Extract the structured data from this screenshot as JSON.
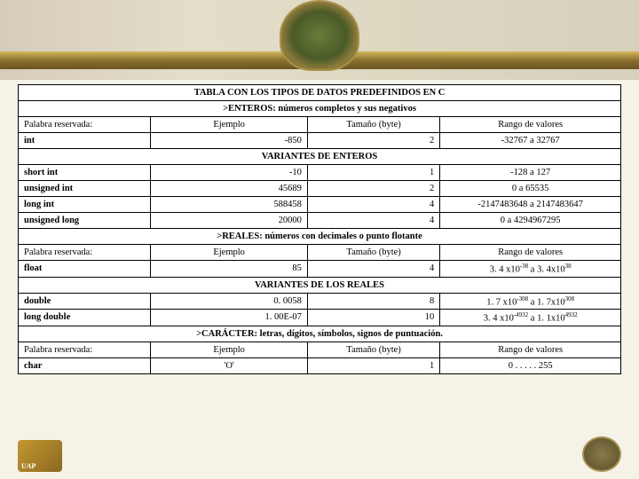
{
  "title": "TABLA CON LOS TIPOS DE DATOS PREDEFINIDOS EN C",
  "sections": {
    "enteros": {
      "header": ">ENTEROS: números completos y sus negativos",
      "cols": {
        "c1": "Palabra reservada:",
        "c2": "Ejemplo",
        "c3": "Tamaño (byte)",
        "c4": "Rango de valores"
      },
      "row_int": {
        "name": "int",
        "ej": "-850",
        "sz": "2",
        "rng": "-32767 a 32767"
      },
      "variants_header": "VARIANTES DE ENTEROS",
      "row_short": {
        "name": "short int",
        "ej": "-10",
        "sz": "1",
        "rng": "-128 a 127"
      },
      "row_uint": {
        "name": "unsigned int",
        "ej": "45689",
        "sz": "2",
        "rng": "0 a 65535"
      },
      "row_long": {
        "name": "long int",
        "ej": "588458",
        "sz": "4",
        "rng": "-2147483648 a 2147483647"
      },
      "row_ulong": {
        "name": "unsigned long",
        "ej": "20000",
        "sz": "4",
        "rng": "0 a 4294967295"
      }
    },
    "reales": {
      "header": ">REALES: números con decimales o punto flotante",
      "cols": {
        "c1": "Palabra reservada:",
        "c2": "Ejemplo",
        "c3": "Tamaño (byte)",
        "c4": "Rango de valores"
      },
      "row_float": {
        "name": "float",
        "ej": "85",
        "sz": "4",
        "rng_a": "3. 4 x10",
        "rng_b": " a 3. 4x10",
        "exp1": "-38",
        "exp2": "38"
      },
      "variants_header": "VARIANTES DE LOS REALES",
      "row_double": {
        "name": "double",
        "ej": "0. 0058",
        "sz": "8",
        "rng_a": "1. 7 x10",
        "rng_b": " a 1. 7x10",
        "exp1": "-308",
        "exp2": "308"
      },
      "row_ldouble": {
        "name": "long double",
        "ej": "1. 00E-07",
        "sz": "10",
        "rng_a": "3. 4 x10",
        "rng_b": " a 1. 1x10",
        "exp1": "-4932",
        "exp2": "4932"
      }
    },
    "caracter": {
      "header": ">CARÁCTER: letras, dígitos, símbolos, signos de puntuación.",
      "cols": {
        "c1": "Palabra reservada:",
        "c2": "Ejemplo",
        "c3": "Tamaño (byte)",
        "c4": "Rango de valores"
      },
      "row_char": {
        "name": "char",
        "ej": "'O'",
        "sz": "1",
        "rng": "0 . . . . . 255"
      }
    }
  }
}
